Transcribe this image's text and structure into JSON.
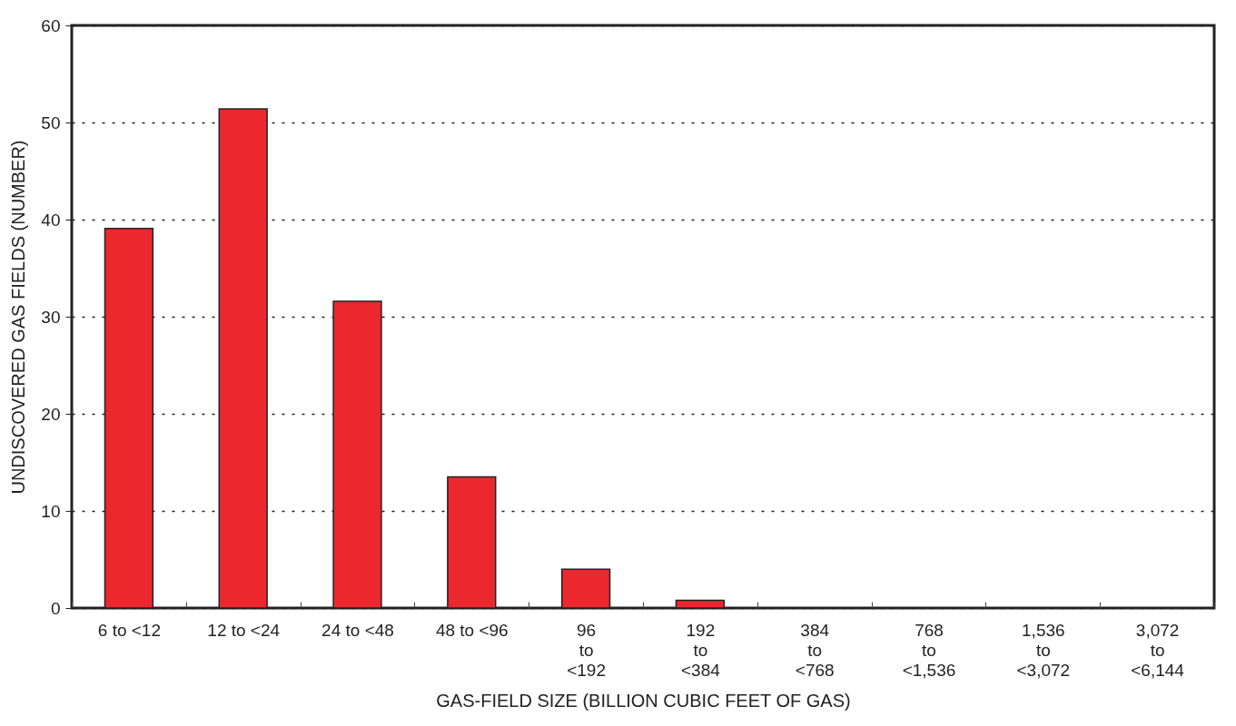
{
  "chart_data": {
    "type": "bar",
    "xlabel": "GAS-FIELD SIZE (BILLION CUBIC FEET OF GAS)",
    "ylabel": "UNDISCOVERED GAS FIELDS (NUMBER)",
    "categories": [
      "6 to <12",
      "12 to <24",
      "24 to <48",
      "48 to <96",
      "96\nto\n<192",
      "192\nto\n<384",
      "384\nto\n<768",
      "768\nto\n<1,536",
      "1,536\nto\n<3,072",
      "3,072\nto\n<6,144"
    ],
    "values": [
      39.1,
      51.4,
      31.6,
      13.5,
      4.0,
      0.8,
      0,
      0,
      0,
      0
    ],
    "color": "#ec282e",
    "ylim": [
      0,
      60
    ],
    "yticks": [
      0,
      10,
      20,
      30,
      40,
      50,
      60
    ],
    "grid": "y"
  }
}
